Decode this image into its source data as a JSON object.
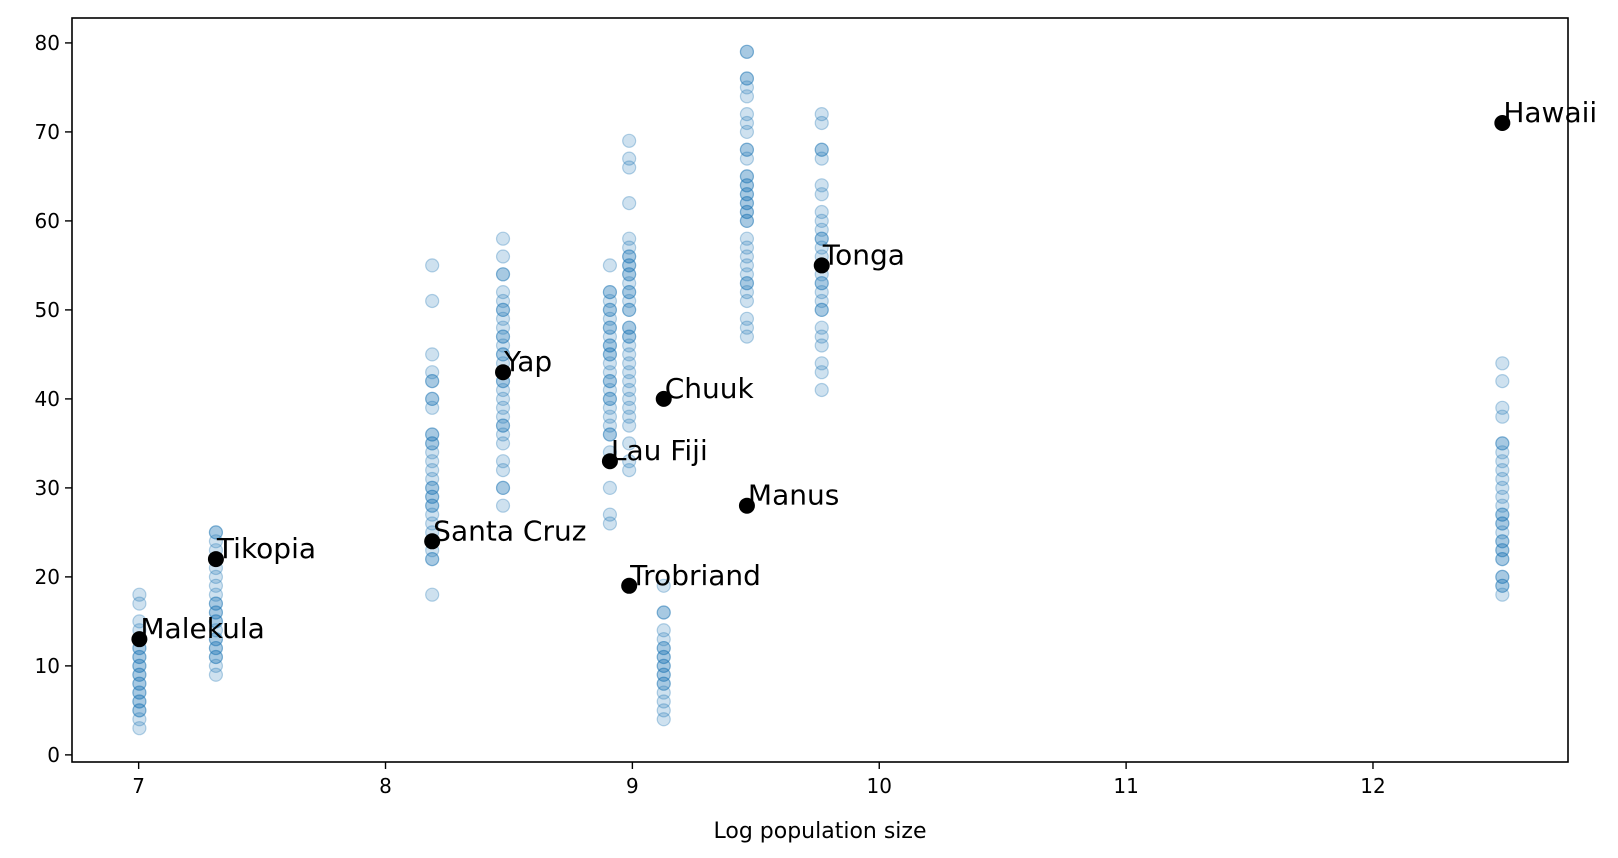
{
  "chart_data": {
    "type": "scatter",
    "title": "",
    "xlabel": "Log population size",
    "ylabel": "",
    "xlim": [
      6.73,
      12.79
    ],
    "ylim": [
      -0.8,
      82.8
    ],
    "xticks": [
      7,
      8,
      9,
      10,
      11,
      12
    ],
    "yticks": [
      0,
      10,
      20,
      30,
      40,
      50,
      60,
      70,
      80
    ],
    "grid": false,
    "legend": "none",
    "colors": {
      "samples": "#1f77b4",
      "highlight": "#000000"
    },
    "samples": [
      {
        "x": 7.003,
        "y": [
          3,
          4,
          5,
          5,
          6,
          6,
          7,
          7,
          8,
          8,
          9,
          9,
          10,
          10,
          11,
          11,
          12,
          12,
          13,
          13,
          14,
          15,
          17,
          18
        ]
      },
      {
        "x": 7.313,
        "y": [
          9,
          10,
          11,
          11,
          12,
          12,
          13,
          13,
          14,
          15,
          15,
          16,
          16,
          17,
          17,
          18,
          19,
          20,
          21,
          22,
          23,
          24,
          25,
          25
        ]
      },
      {
        "x": 8.189,
        "y": [
          18,
          22,
          22,
          23,
          24,
          25,
          26,
          27,
          28,
          28,
          29,
          29,
          30,
          30,
          31,
          32,
          33,
          34,
          35,
          35,
          36,
          36,
          39,
          40,
          40,
          42,
          42,
          43,
          45,
          51,
          55
        ]
      },
      {
        "x": 8.476,
        "y": [
          28,
          30,
          30,
          32,
          33,
          35,
          36,
          37,
          37,
          38,
          39,
          40,
          41,
          42,
          42,
          43,
          44,
          45,
          45,
          46,
          47,
          47,
          48,
          49,
          50,
          50,
          51,
          52,
          54,
          54,
          56,
          58
        ]
      },
      {
        "x": 8.909,
        "y": [
          26,
          27,
          30,
          33,
          34,
          36,
          36,
          37,
          38,
          39,
          40,
          40,
          41,
          42,
          42,
          43,
          44,
          45,
          45,
          46,
          46,
          47,
          48,
          48,
          49,
          50,
          50,
          51,
          52,
          52,
          55
        ]
      },
      {
        "x": 8.987,
        "y": [
          32,
          33,
          35,
          37,
          38,
          39,
          40,
          41,
          42,
          43,
          44,
          45,
          46,
          47,
          47,
          48,
          48,
          50,
          50,
          51,
          52,
          52,
          53,
          54,
          54,
          55,
          55,
          56,
          56,
          57,
          58,
          62,
          66,
          67,
          69
        ]
      },
      {
        "x": 9.127,
        "y": [
          4,
          5,
          6,
          7,
          8,
          8,
          9,
          9,
          10,
          10,
          11,
          11,
          12,
          12,
          13,
          14,
          16,
          16,
          19
        ]
      },
      {
        "x": 9.464,
        "y": [
          47,
          48,
          49,
          51,
          52,
          53,
          53,
          54,
          55,
          56,
          57,
          58,
          60,
          60,
          61,
          61,
          62,
          62,
          63,
          63,
          64,
          64,
          65,
          65,
          67,
          68,
          68,
          70,
          71,
          72,
          74,
          75,
          76,
          76,
          79,
          79
        ]
      },
      {
        "x": 9.767,
        "y": [
          41,
          43,
          44,
          46,
          47,
          48,
          50,
          50,
          51,
          52,
          53,
          53,
          54,
          55,
          56,
          57,
          58,
          58,
          59,
          60,
          61,
          63,
          64,
          67,
          68,
          68,
          71,
          72
        ]
      },
      {
        "x": 12.524,
        "y": [
          18,
          19,
          19,
          20,
          20,
          22,
          22,
          23,
          23,
          24,
          24,
          25,
          26,
          26,
          27,
          27,
          28,
          29,
          30,
          31,
          32,
          33,
          34,
          35,
          35,
          38,
          39,
          42,
          44
        ]
      }
    ],
    "highlights": [
      {
        "label": "Malekula",
        "x": 7.003,
        "y": 13
      },
      {
        "label": "Tikopia",
        "x": 7.313,
        "y": 22
      },
      {
        "label": "Santa Cruz",
        "x": 8.189,
        "y": 24
      },
      {
        "label": "Yap",
        "x": 8.476,
        "y": 43
      },
      {
        "label": "Lau Fiji",
        "x": 8.909,
        "y": 33
      },
      {
        "label": "Trobriand",
        "x": 8.987,
        "y": 19
      },
      {
        "label": "Chuuk",
        "x": 9.127,
        "y": 40
      },
      {
        "label": "Manus",
        "x": 9.464,
        "y": 28
      },
      {
        "label": "Tonga",
        "x": 9.767,
        "y": 55
      },
      {
        "label": "Hawaii",
        "x": 12.524,
        "y": 71
      }
    ]
  }
}
